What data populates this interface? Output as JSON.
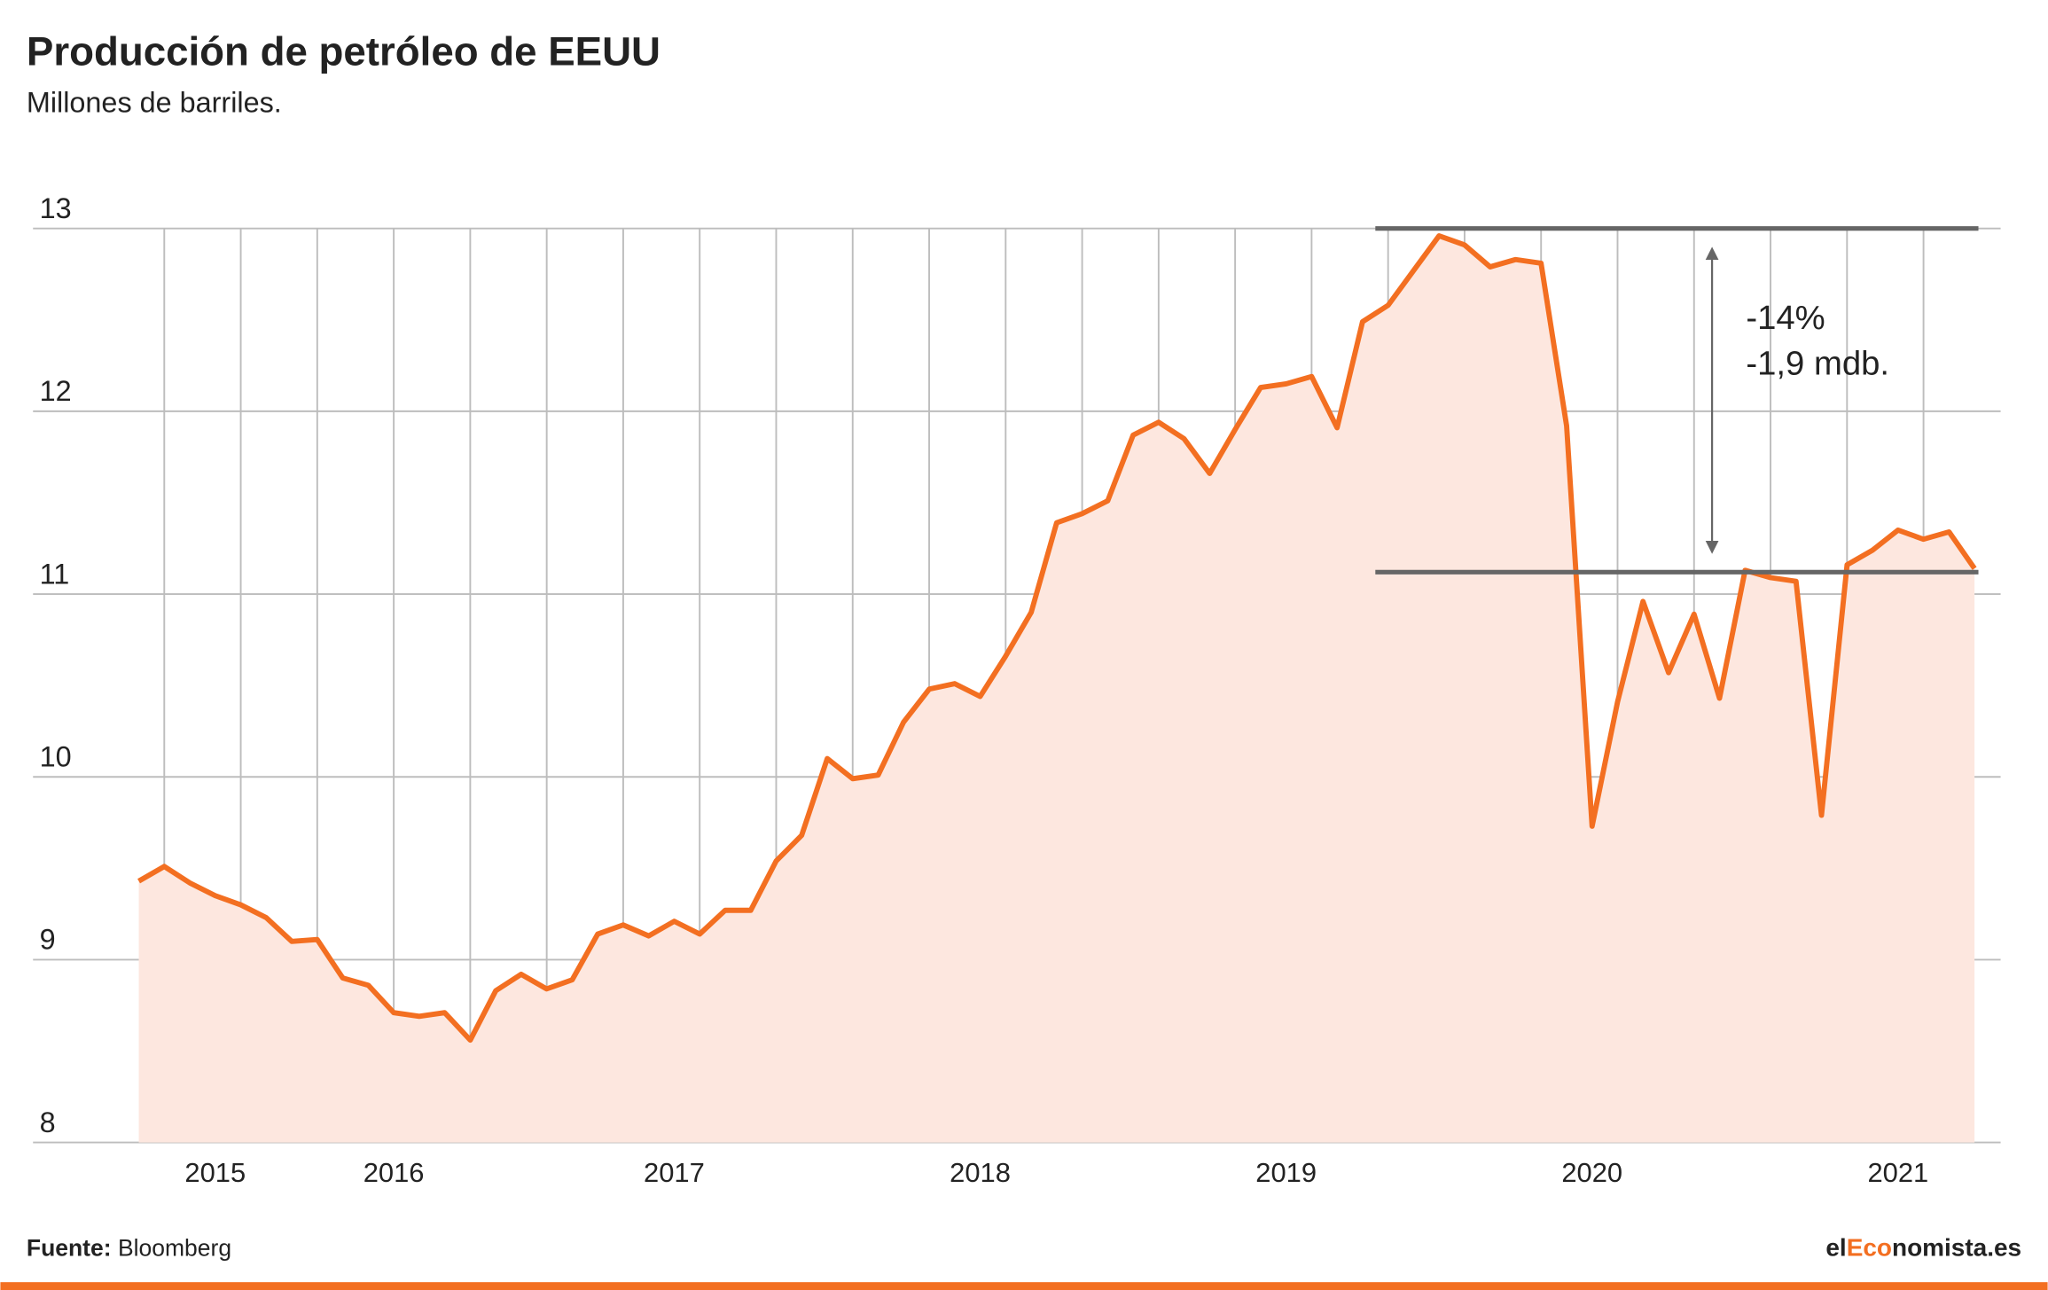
{
  "chart_data": {
    "type": "area",
    "title": "Producción de petróleo de EEUU",
    "subtitle": "Millones de barriles.",
    "categories": [
      null,
      null,
      null,
      "2015",
      null,
      null,
      null,
      null,
      null,
      null,
      "2016",
      null,
      null,
      null,
      null,
      null,
      null,
      null,
      null,
      null,
      null,
      "2017",
      null,
      null,
      null,
      null,
      null,
      null,
      null,
      null,
      null,
      null,
      null,
      "2018",
      null,
      null,
      null,
      null,
      null,
      null,
      null,
      null,
      null,
      null,
      null,
      "2019",
      null,
      null,
      null,
      null,
      null,
      null,
      null,
      null,
      null,
      null,
      null,
      "2020",
      null,
      null,
      null,
      null,
      null,
      null,
      null,
      null,
      null,
      null,
      null,
      "2021",
      null,
      null,
      null
    ],
    "values": [
      9.43,
      9.51,
      9.42,
      9.35,
      9.3,
      9.23,
      9.1,
      9.11,
      8.9,
      8.86,
      8.71,
      8.69,
      8.71,
      8.56,
      8.83,
      8.92,
      8.84,
      8.89,
      9.14,
      9.19,
      9.13,
      9.21,
      9.14,
      9.27,
      9.27,
      9.54,
      9.68,
      10.1,
      9.99,
      10.01,
      10.3,
      10.48,
      10.51,
      10.44,
      10.66,
      10.9,
      11.39,
      11.44,
      11.51,
      11.87,
      11.94,
      11.85,
      11.66,
      11.9,
      12.13,
      12.15,
      12.19,
      11.91,
      12.49,
      12.58,
      12.77,
      12.96,
      12.91,
      12.79,
      12.83,
      12.81,
      11.92,
      9.73,
      10.41,
      10.96,
      10.57,
      10.89,
      10.43,
      11.13,
      11.09,
      11.07,
      9.79,
      11.16,
      11.24,
      11.35,
      11.3,
      11.34,
      11.14
    ],
    "color": "#f36f21",
    "fill_color": "#fde7df",
    "ylim": [
      8,
      13
    ],
    "yticks": [
      8,
      9,
      10,
      11,
      12,
      13
    ],
    "grid": true,
    "reference_lines": [
      13,
      11.12
    ],
    "annotations": [
      "-14%",
      "-1,9 mdb."
    ],
    "source_label": "Fuente:",
    "source": "Bloomberg",
    "logo": [
      "el",
      "Eco",
      "nomista.es"
    ]
  }
}
